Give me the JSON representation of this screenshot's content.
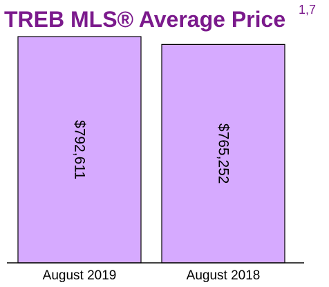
{
  "title": "TREB MLS® Average Price",
  "title_superscript": "1,7",
  "colors": {
    "title": "#7b1a8c",
    "bar_fill": "#d6aaff",
    "bar_stroke": "#000000",
    "axis": "#000000"
  },
  "chart_data": {
    "type": "bar",
    "categories": [
      "August 2019",
      "August 2018"
    ],
    "values": [
      792611,
      765252
    ],
    "data_labels": [
      "$792,611",
      "$765,252"
    ],
    "title": "TREB MLS® Average Price",
    "xlabel": "",
    "ylabel": "",
    "ylim": [
      0,
      800000
    ],
    "grid": false,
    "legend": "none"
  }
}
